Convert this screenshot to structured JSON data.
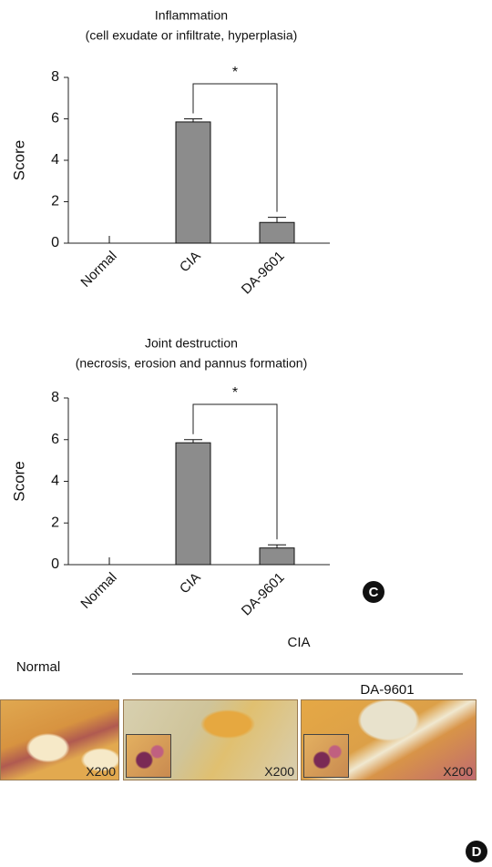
{
  "chart_data": [
    {
      "type": "bar",
      "title": "Inflammation",
      "subtitle": "(cell exudate or infiltrate, hyperplasia)",
      "y_label": "Score",
      "categories": [
        "Normal",
        "CIA",
        "DA-9601"
      ],
      "values": [
        0,
        5.85,
        1.0
      ],
      "errors": [
        0.35,
        0.15,
        0.25
      ],
      "color": "#8c8c8c",
      "ylim": [
        0,
        8
      ],
      "yticks": [
        0,
        2,
        4,
        6,
        8
      ],
      "annotation": "*"
    },
    {
      "type": "bar",
      "title": "Joint destruction",
      "subtitle": "(necrosis, erosion and pannus formation)",
      "y_label": "Score",
      "categories": [
        "Normal",
        "CIA",
        "DA-9601"
      ],
      "values": [
        0,
        5.85,
        0.8
      ],
      "errors": [
        0.35,
        0.15,
        0.15
      ],
      "color": "#8c8c8c",
      "ylim": [
        0,
        8
      ],
      "yticks": [
        0,
        2,
        4,
        6,
        8
      ],
      "annotation": "*"
    }
  ],
  "figure": {
    "panel_c": "C",
    "panel_d": "D",
    "group_normal": "Normal",
    "group_cia": "CIA",
    "group_da": "DA-9601",
    "magnification": [
      "X200",
      "X200",
      "X200"
    ]
  }
}
